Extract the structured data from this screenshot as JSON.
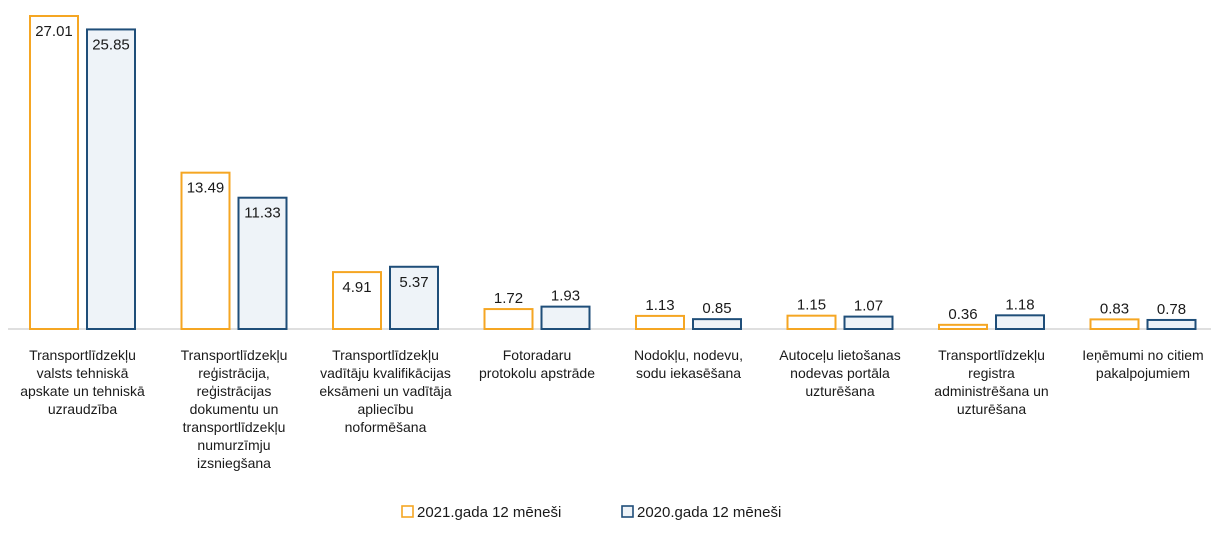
{
  "chart_data": {
    "type": "bar",
    "categories": [
      [
        "Transportlīdzekļu",
        "valsts tehniskā",
        "apskate un tehniskā",
        "uzraudzība"
      ],
      [
        "Transportlīdzekļu",
        "reģistrācija,",
        "reģistrācijas",
        "dokumentu un",
        "transportlīdzekļu",
        "numurzīmju",
        "izsniegšana"
      ],
      [
        "Transportlīdzekļu",
        "vadītāju kvalifikācijas",
        "eksāmeni un vadītāja",
        "apliecību",
        "noformēšana"
      ],
      [
        "Fotoradaru",
        "protokolu apstrāde"
      ],
      [
        "Nodokļu, nodevu,",
        "sodu iekasēšana"
      ],
      [
        "Autoceļu lietošanas",
        "nodevas portāla",
        "uzturēšana"
      ],
      [
        "Transportlīdzekļu",
        "registra",
        "administrēšana un",
        "uzturēšana"
      ],
      [
        "Ieņēmumi no citiem",
        "pakalpojumiem"
      ]
    ],
    "series": [
      {
        "name": "2021.gada 12 mēneši",
        "values": [
          27.01,
          13.49,
          4.91,
          1.72,
          1.13,
          1.15,
          0.36,
          0.83
        ],
        "labels": [
          "27.01",
          "13.49",
          "4.91",
          "1.72",
          "1.13",
          "1.15",
          "0.36",
          "0.83"
        ],
        "color": "#F5A623",
        "fill": "#ffffff"
      },
      {
        "name": "2020.gada 12 mēneši",
        "values": [
          25.85,
          11.33,
          5.37,
          1.93,
          0.85,
          1.07,
          1.18,
          0.78
        ],
        "labels": [
          "25.85",
          "11.33",
          "5.37",
          "1.93",
          "0.85",
          "1.07",
          "1.18",
          "0.78"
        ],
        "color": "#1F4E79",
        "fill": "#EEF3F8"
      }
    ],
    "ylim": [
      0,
      27.01
    ],
    "grid": false,
    "legend_position": "bottom-center",
    "axis_color": "#BFBFBF"
  }
}
